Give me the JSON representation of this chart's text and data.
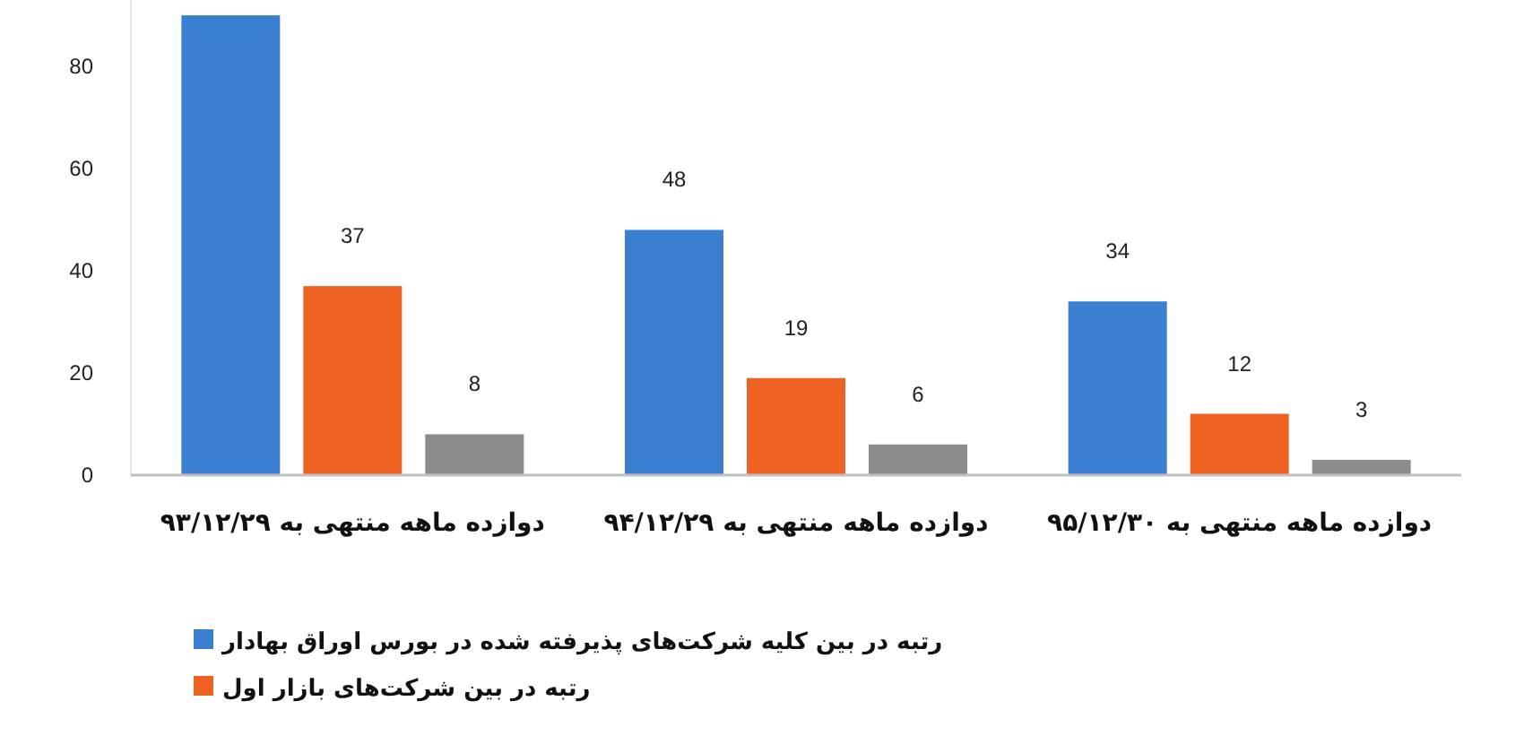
{
  "chart_data": {
    "type": "bar",
    "categories": [
      "دوازده ماهه منتهی به ۹۳/۱۲/۲۹",
      "دوازده ماهه منتهی به ۹۴/۱۲/۲۹",
      "دوازده ماهه منتهی به ۹۵/۱۲/۳۰"
    ],
    "series": [
      {
        "name": "رتبه در بین کلیه شرکت‌های پذیرفته شده در بورس اوراق بهادار",
        "color": "#3a7fd0",
        "values": [
          90,
          48,
          34
        ],
        "value_labels": [
          null,
          "48",
          "34"
        ]
      },
      {
        "name": "رتبه در بین شرکت‌های بازار اول",
        "color": "#ee6322",
        "values": [
          37,
          19,
          12
        ],
        "value_labels": [
          "37",
          "19",
          "12"
        ]
      },
      {
        "color": "#8c8c8c",
        "values": [
          8,
          6,
          3
        ],
        "value_labels": [
          "8",
          "6",
          "3"
        ]
      }
    ],
    "ylim": [
      0,
      93
    ],
    "yticks": [
      0,
      20,
      40,
      60,
      80
    ],
    "grid": false,
    "legend": "bottom"
  }
}
